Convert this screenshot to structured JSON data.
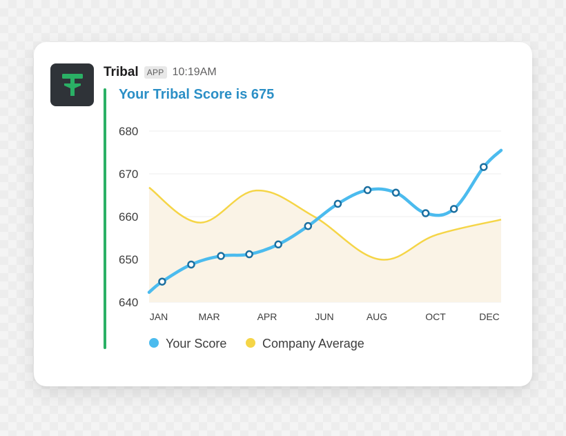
{
  "app": {
    "name": "Tribal",
    "badge": "APP",
    "time": "10:19AM",
    "icon": "tribal-tree-logo-icon"
  },
  "message": {
    "title": "Your Tribal Score is 675"
  },
  "colors": {
    "accent_bar": "#2ab065",
    "title": "#2b8fc6",
    "your_score": "#4bbbee",
    "company_average": "#f5d547",
    "company_fill": "#faf3e6",
    "logo": "#2ab065"
  },
  "chart_data": {
    "type": "line",
    "x_tick_labels": [
      "JAN",
      "MAR",
      "APR",
      "JUN",
      "AUG",
      "OCT",
      "DEC"
    ],
    "ylim": [
      640,
      680
    ],
    "yticks": [
      640,
      650,
      660,
      670,
      680
    ],
    "grid": true,
    "legend_position": "bottom-left",
    "series": [
      {
        "name": "Your Score",
        "color": "#4bbbee",
        "markers": true,
        "points": [
          {
            "x": 0,
            "y": 642.3,
            "marker": false
          },
          {
            "x": 0.36,
            "y": 644.8,
            "marker": true
          },
          {
            "x": 1.16,
            "y": 648.8,
            "marker": true
          },
          {
            "x": 1.98,
            "y": 650.8,
            "marker": true
          },
          {
            "x": 2.76,
            "y": 651.2,
            "marker": true
          },
          {
            "x": 3.56,
            "y": 653.5,
            "marker": true
          },
          {
            "x": 4.38,
            "y": 657.8,
            "marker": true
          },
          {
            "x": 5.2,
            "y": 663.0,
            "marker": true
          },
          {
            "x": 6.02,
            "y": 666.2,
            "marker": true
          },
          {
            "x": 6.8,
            "y": 665.6,
            "marker": true
          },
          {
            "x": 7.62,
            "y": 660.8,
            "marker": true
          },
          {
            "x": 8.4,
            "y": 661.8,
            "marker": true
          },
          {
            "x": 9.22,
            "y": 671.6,
            "marker": true
          },
          {
            "x": 9.7,
            "y": 675.5,
            "marker": false
          }
        ]
      },
      {
        "name": "Company Average",
        "color": "#f5d547",
        "area": true,
        "points": [
          {
            "x": 0,
            "y": 666.8
          },
          {
            "x": 1.4,
            "y": 658.6
          },
          {
            "x": 2.95,
            "y": 666.1
          },
          {
            "x": 4.55,
            "y": 660.0
          },
          {
            "x": 6.35,
            "y": 650.0
          },
          {
            "x": 7.9,
            "y": 655.7
          },
          {
            "x": 9.7,
            "y": 659.3
          }
        ]
      }
    ]
  }
}
